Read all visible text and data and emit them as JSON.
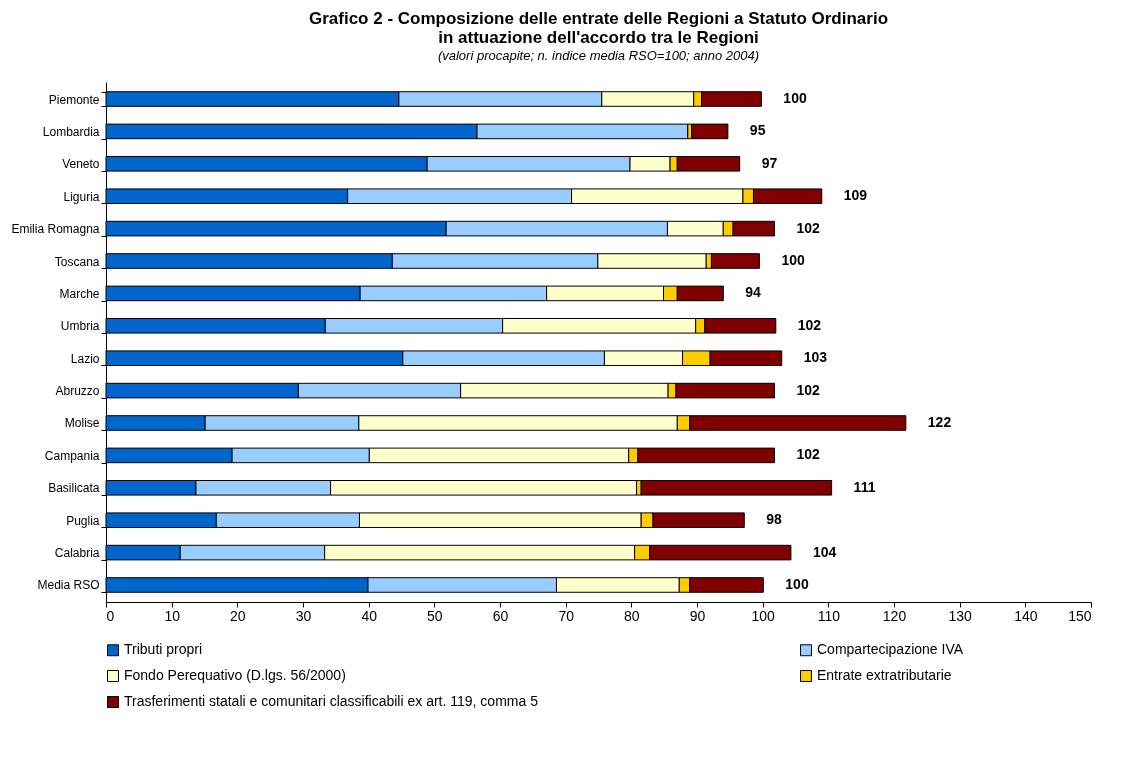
{
  "chart_data": {
    "type": "bar",
    "orientation": "horizontal",
    "stacked": true,
    "title": "Grafico 2 -  Composizione delle entrate delle Regioni a Statuto Ordinario in attuazione dell'accordo tra le Regioni",
    "subtitle": "(valori procapite; n. indice media RSO=100; anno 2004)",
    "categories": [
      "Piemonte",
      "Lombardia",
      "Veneto",
      "Liguria",
      "Emilia Romagna",
      "Toscana",
      "Marche",
      "Umbria",
      "Lazio",
      "Abruzzo",
      "Molise",
      "Campania",
      "Basilicata",
      "Puglia",
      "Calabria",
      "Media RSO"
    ],
    "series": [
      {
        "name": "Tributi propri",
        "color": "#0066cc",
        "values": [
          44.6,
          56.5,
          48.9,
          36.8,
          51.8,
          43.6,
          38.7,
          33.4,
          45.2,
          29.3,
          15.1,
          19.2,
          13.7,
          16.8,
          11.3,
          39.9
        ]
      },
      {
        "name": "Compartecipazione IVA",
        "color": "#99ccff",
        "values": [
          30.9,
          32.1,
          30.9,
          34.1,
          33.7,
          31.3,
          28.4,
          27.0,
          30.7,
          24.7,
          23.4,
          20.9,
          20.5,
          21.8,
          22.0,
          28.7
        ]
      },
      {
        "name": "Fondo Perequativo (D.lgs. 56/2000)",
        "color": "#ffffcc",
        "values": [
          14.0,
          0,
          6.1,
          26.1,
          8.5,
          16.5,
          17.8,
          29.4,
          11.9,
          31.6,
          48.5,
          39.5,
          46.6,
          42.9,
          47.2,
          18.7
        ]
      },
      {
        "name": "Entrate extratributarie",
        "color": "#ffcc00",
        "values": [
          1.2,
          0.6,
          1.1,
          1.6,
          1.5,
          0.8,
          2.1,
          1.4,
          4.2,
          1.2,
          1.9,
          1.4,
          0.7,
          1.8,
          2.3,
          1.6
        ]
      },
      {
        "name": "Trasferimenti statali e comunitari classificabili ex art. 119, comma 5",
        "color": "#800000",
        "values": [
          9.1,
          5.5,
          9.5,
          10.4,
          6.3,
          7.3,
          7.0,
          10.8,
          10.9,
          15.0,
          32.9,
          20.8,
          29.0,
          13.9,
          21.5,
          11.2
        ]
      }
    ],
    "totals": [
      "100",
      "95",
      "97",
      "109",
      "102",
      "100",
      "94",
      "102",
      "103",
      "102",
      "122",
      "102",
      "111",
      "98",
      "104",
      "100"
    ],
    "xlim": [
      0,
      150
    ],
    "xticks": [
      0,
      10,
      20,
      30,
      40,
      50,
      60,
      70,
      80,
      90,
      100,
      110,
      120,
      130,
      140,
      150
    ],
    "legend": "bottom"
  }
}
